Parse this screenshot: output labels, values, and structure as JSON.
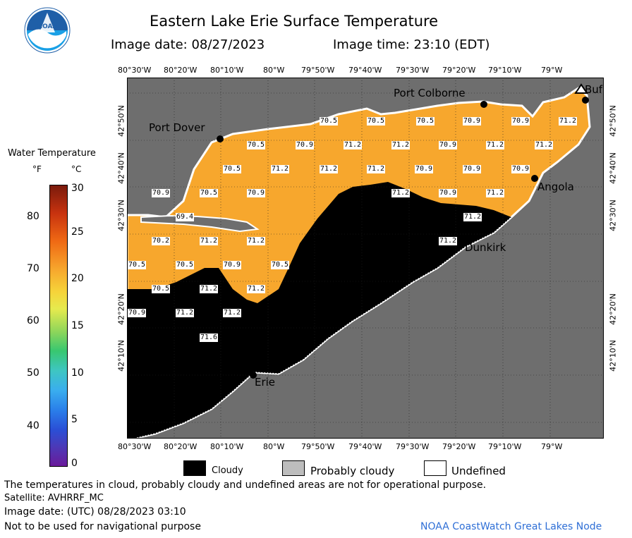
{
  "header": {
    "title": "Eastern Lake Erie Surface Temperature",
    "date_label": "Image date: 08/27/2023",
    "time_label": "Image time: 23:10 (EDT)"
  },
  "logo": {
    "text": "NOAA"
  },
  "colorbar": {
    "title": "Water Temperature",
    "unit_f": "°F",
    "unit_c": "°C",
    "f_ticks": [
      "80",
      "70",
      "60",
      "50",
      "40"
    ],
    "c_ticks": [
      "30",
      "25",
      "20",
      "15",
      "10",
      "5",
      "0"
    ]
  },
  "map": {
    "lon_labels": [
      "80°30'W",
      "80°20'W",
      "80°10'W",
      "80°W",
      "79°50'W",
      "79°40'W",
      "79°30'W",
      "79°20'W",
      "79°10'W",
      "79°W"
    ],
    "lat_labels": [
      "42°50'N",
      "42°40'N",
      "42°30'N",
      "42°20'N",
      "42°10'N"
    ],
    "cities": [
      "Port Colborne",
      "Port Dover",
      "Angola",
      "Dunkirk",
      "Erie",
      "Buf"
    ],
    "temps": [
      "70.5",
      "70.5",
      "70.5",
      "70.9",
      "70.9",
      "71.2",
      "70.5",
      "70.9",
      "71.2",
      "71.2",
      "70.9",
      "71.2",
      "71.2",
      "70.5",
      "71.2",
      "71.2",
      "71.2",
      "70.9",
      "70.9",
      "70.9",
      "70.9",
      "70.5",
      "70.9",
      "71.2",
      "70.9",
      "71.2",
      "71.2",
      "69.4",
      "70.2",
      "71.2",
      "71.2",
      "71.2",
      "70.5",
      "70.5",
      "70.9",
      "70.5",
      "70.5",
      "71.2",
      "71.2",
      "70.9",
      "71.2",
      "71.2",
      "71.6",
      "71.2"
    ],
    "colors": {
      "land": "#6e6e6e",
      "water": "#f7a72d",
      "cloud": "#000000",
      "undefined": "#ffffff"
    }
  },
  "legend": {
    "cloudy": "Cloudy",
    "probably_cloudy": "Probably cloudy",
    "undefined": "Undefined"
  },
  "footer": {
    "disclaimer": "The temperatures in cloud, probably cloudy and undefined areas are not for operational purpose.",
    "satellite": "Satellite: AVHRRF_MC",
    "utc_date": "Image date: (UTC) 08/28/2023  03:10",
    "navigation": "Not to be used for navigational purpose",
    "credit": "NOAA CoastWatch Great Lakes Node"
  }
}
